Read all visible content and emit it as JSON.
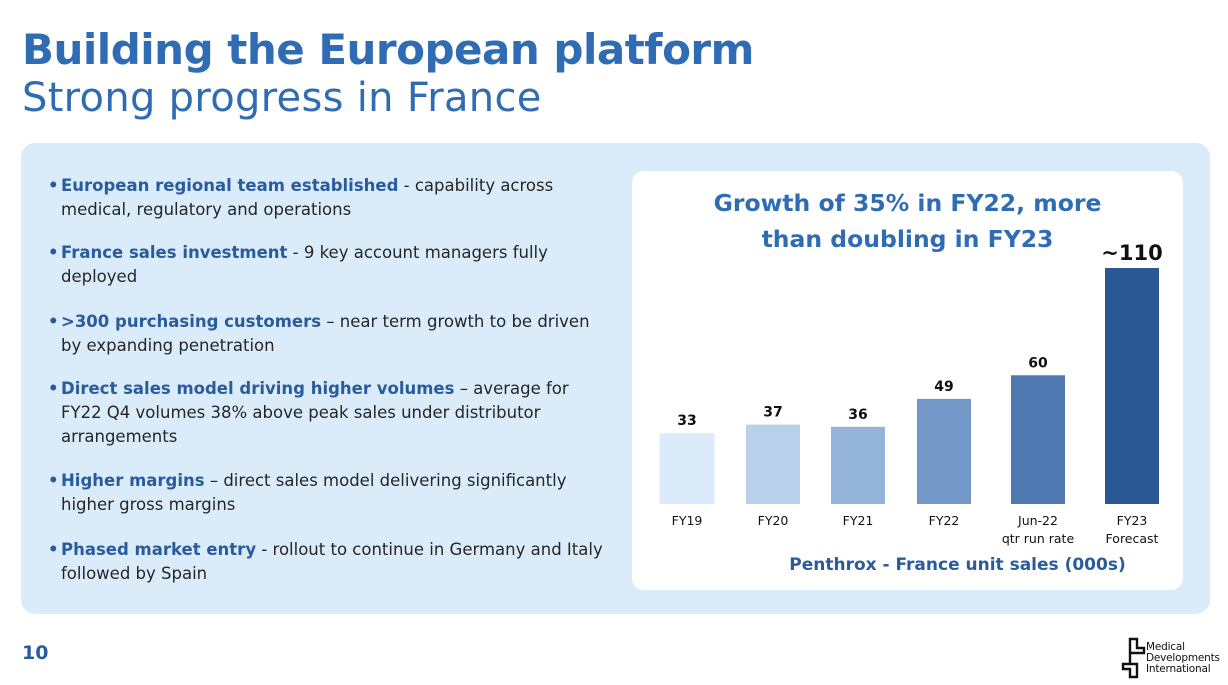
{
  "header": {
    "title": "Building the European platform",
    "subtitle": "Strong progress in France"
  },
  "bullets": [
    {
      "lead": "European regional team established",
      "text": " - capability across medical, regulatory and operations"
    },
    {
      "lead": "France sales investment",
      "text": " - 9 key account managers fully deployed"
    },
    {
      "lead": ">300 purchasing customers",
      "text": " – near term growth to be driven by expanding penetration"
    },
    {
      "lead": "Direct sales model driving higher volumes",
      "text": " – average for FY22 Q4 volumes 38% above peak sales under distributor arrangements"
    },
    {
      "lead": "Higher margins",
      "text": " – direct sales model delivering significantly higher gross margins"
    },
    {
      "lead": "Phased market entry",
      "text": " - rollout to continue in Germany and Italy followed by Spain"
    }
  ],
  "chart_data": {
    "type": "bar",
    "title_lines": [
      "Growth of 35% in FY22, more",
      "than doubling in FY23"
    ],
    "caption": "Penthrox - France unit sales (000s)",
    "categories": [
      [
        "FY19"
      ],
      [
        "FY20"
      ],
      [
        "FY21"
      ],
      [
        "FY22"
      ],
      [
        "Jun-22",
        "qtr run rate"
      ],
      [
        "FY23",
        "Forecast"
      ]
    ],
    "values": [
      33,
      37,
      36,
      49,
      60,
      110
    ],
    "value_labels": [
      "33",
      "37",
      "36",
      "49",
      "60",
      "~110"
    ],
    "colors": [
      "#dcebf9",
      "#b8d0ea",
      "#94b4d9",
      "#7397c6",
      "#4f78b0",
      "#2a5895"
    ],
    "ylim": [
      0,
      110
    ],
    "grid": false,
    "legend": "none"
  },
  "footer": {
    "page_number": "10",
    "logo_lines": [
      "Medical",
      "Developments",
      "International"
    ]
  }
}
